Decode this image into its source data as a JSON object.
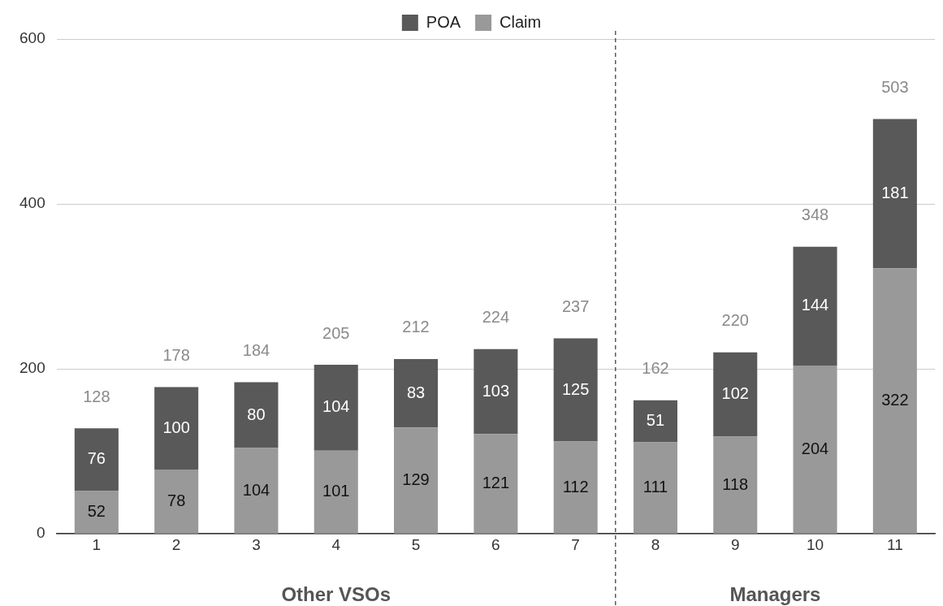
{
  "chart_data": {
    "type": "bar",
    "stacked": true,
    "x": [
      1,
      2,
      3,
      4,
      5,
      6,
      7,
      8,
      9,
      10,
      11
    ],
    "xlim": [
      0.5,
      11.5
    ],
    "xticks": [
      1,
      2,
      3,
      4,
      5,
      6,
      7,
      8,
      9,
      10,
      11
    ],
    "series": [
      {
        "name": "Claim",
        "color": "#999999",
        "values": [
          52,
          78,
          104,
          101,
          129,
          121,
          112,
          111,
          118,
          204,
          322
        ]
      },
      {
        "name": "POA",
        "color": "#595959",
        "values": [
          76,
          100,
          80,
          104,
          83,
          103,
          125,
          51,
          102,
          144,
          181
        ]
      }
    ],
    "ylim": [
      0,
      600
    ],
    "yticks": [
      0,
      200,
      400,
      600
    ],
    "grid": "y",
    "legend": "top",
    "data_labels": true,
    "totals": [
      "128",
      "178",
      "184",
      "205",
      "212",
      "224",
      "237",
      "162",
      "220",
      "348",
      "503"
    ],
    "ref_lines": [
      {
        "axis": "x",
        "value": 7.5,
        "line_style": "dashed",
        "color": "#333333"
      }
    ],
    "annotations": [
      "Other VSOs",
      "Managers"
    ]
  }
}
